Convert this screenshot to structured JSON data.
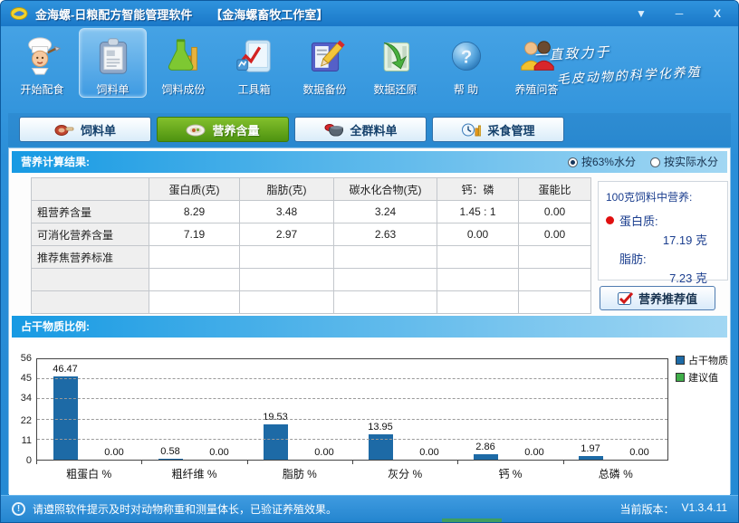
{
  "window": {
    "title": "金海螺-日粮配方智能管理软件",
    "subtitle": "【金海螺畜牧工作室】",
    "controls": {
      "skin": "▼",
      "minimize": "─",
      "close": "X"
    }
  },
  "toolbar": {
    "items": [
      {
        "label": "开始配食",
        "icon": "chef-icon",
        "selected": false
      },
      {
        "label": "饲料单",
        "icon": "clipboard-icon",
        "selected": true
      },
      {
        "label": "饲料成份",
        "icon": "flask-icon",
        "selected": false
      },
      {
        "label": "工具箱",
        "icon": "chart-tablet-icon",
        "selected": false
      },
      {
        "label": "数据备份",
        "icon": "backup-pencil-icon",
        "selected": false
      },
      {
        "label": "数据还原",
        "icon": "restore-arrow-icon",
        "selected": false
      },
      {
        "label": "帮 助",
        "icon": "help-question-icon",
        "selected": false
      },
      {
        "label": "养殖问答",
        "icon": "people-qa-icon",
        "selected": false
      }
    ],
    "slogan_line1": "一直致力于",
    "slogan_line2": "毛皮动物的科学化养殖"
  },
  "tabs": [
    {
      "label": "饲料单",
      "icon": "meat-icon",
      "selected": false
    },
    {
      "label": "营养含量",
      "icon": "plate-icon",
      "selected": true
    },
    {
      "label": "全群料单",
      "icon": "bowl-icon",
      "selected": false
    },
    {
      "label": "采食管理",
      "icon": "clock-icon",
      "selected": false
    }
  ],
  "nutrition_section": {
    "title": "营养计算结果:",
    "radio_63": "按63%水分",
    "radio_actual": "按实际水分",
    "table": {
      "headers": [
        "",
        "蛋白质(克)",
        "脂肪(克)",
        "碳水化合物(克)",
        "钙：磷",
        "蛋能比"
      ],
      "rows": [
        {
          "label": "粗营养含量",
          "values": [
            "8.29",
            "3.48",
            "3.24",
            "1.45 : 1",
            "0.00"
          ]
        },
        {
          "label": "可消化营养含量",
          "values": [
            "7.19",
            "2.97",
            "2.63",
            "0.00",
            "0.00"
          ]
        },
        {
          "label": "推荐焦营养标准",
          "values": [
            "",
            "",
            "",
            "",
            ""
          ]
        },
        {
          "label": "",
          "values": [
            "",
            "",
            "",
            "",
            ""
          ]
        },
        {
          "label": "",
          "values": [
            "",
            "",
            "",
            "",
            ""
          ]
        }
      ]
    },
    "summary": {
      "title": "100克饲料中营养:",
      "protein_label": "蛋白质:",
      "protein_value": "17.19 克",
      "fat_label": "脂肪:",
      "fat_value": "7.23 克",
      "button_label": "营养推荐值"
    }
  },
  "chart_section": {
    "title": "占干物质比例:"
  },
  "chart_data": {
    "type": "bar",
    "title": "占干物质比例",
    "categories": [
      "粗蛋白 %",
      "粗纤维 %",
      "脂肪 %",
      "灰分 %",
      "钙 %",
      "总磷 %"
    ],
    "series": [
      {
        "name": "占干物质",
        "color": "#1d6aa6",
        "values": [
          46.47,
          0.58,
          19.53,
          13.95,
          2.86,
          1.97
        ],
        "labels": [
          "46.47",
          "0.58",
          "19.53",
          "13.95",
          "2.86",
          "1.97"
        ]
      },
      {
        "name": "建议值",
        "color": "#3fae49",
        "values": [
          0,
          0,
          0,
          0,
          0,
          0
        ],
        "labels": [
          "0.00",
          "0.00",
          "0.00",
          "0.00",
          "0.00",
          "0.00"
        ]
      }
    ],
    "yticks": [
      0,
      11,
      22,
      34,
      45,
      56
    ],
    "ylim": [
      0,
      56
    ],
    "grid": "dashed-horizontal",
    "legend_position": "top-right"
  },
  "statusbar": {
    "message": "请遵照软件提示及时对动物称重和测量体长，已验证养殖效果。",
    "version_label": "当前版本：",
    "version_value": "V1.3.4.11"
  },
  "colors": {
    "titlebar_blue": "#1f7fd0",
    "selected_tab_green": "#4e9310",
    "bar_blue": "#1d6aa6",
    "advice_green": "#3fae49",
    "section_header_blue": "#179ae3",
    "red_dot": "#e01010"
  }
}
